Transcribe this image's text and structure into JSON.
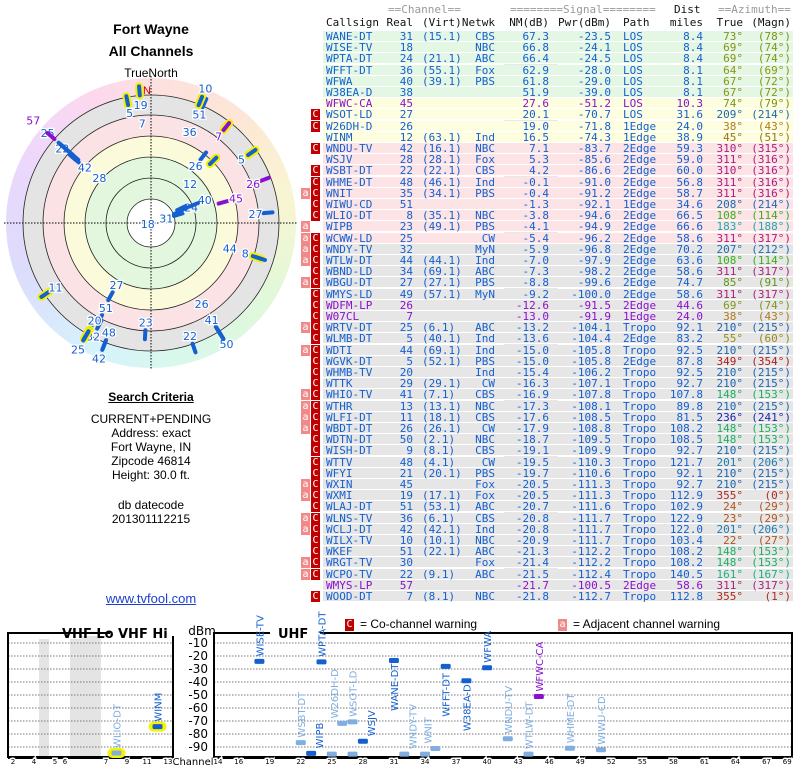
{
  "left": {
    "title1": "Fort Wayne",
    "title2": "All Channels",
    "true_north": "TrueNorth",
    "north": "N",
    "criteria_title": "Search Criteria",
    "criteria": [
      "CURRENT+PENDING",
      "Address: exact",
      "Fort Wayne, IN",
      "Zipcode 46814",
      "Height: 30.0 ft."
    ],
    "datecode_label": "db datecode",
    "datecode": "201301112215",
    "link": "www.tvfool.com"
  },
  "table": {
    "hdr_channel": "==Channel==",
    "hdr_signal": "========Signal========",
    "hdr_dist": "Dist",
    "hdr_azimuth": "==Azimuth==",
    "cols": [
      "Callsign",
      "Real",
      "(Virt)",
      "Netwk",
      "NM(dB)",
      "Pwr(dBm)",
      "Path",
      "miles",
      "True",
      "(Magn)"
    ],
    "rows": [
      [
        "",
        "WANE-DT",
        "31",
        "(15.1)",
        "CBS",
        "67.3",
        "-23.5",
        "LOS",
        "8.4",
        "73°",
        "(78°)",
        "g",
        0
      ],
      [
        "",
        "WISE-TV",
        "18",
        "",
        "NBC",
        "66.8",
        "-24.1",
        "LOS",
        "8.4",
        "69°",
        "(74°)",
        "g",
        0
      ],
      [
        "",
        "WPTA-DT",
        "24",
        "(21.1)",
        "ABC",
        "66.4",
        "-24.5",
        "LOS",
        "8.4",
        "69°",
        "(74°)",
        "g",
        0
      ],
      [
        "",
        "WFFT-DT",
        "36",
        "(55.1)",
        "Fox",
        "62.9",
        "-28.0",
        "LOS",
        "8.1",
        "64°",
        "(69°)",
        "g",
        0
      ],
      [
        "",
        "WFWA",
        "40",
        "(39.1)",
        "PBS",
        "61.8",
        "-29.0",
        "LOS",
        "8.1",
        "67°",
        "(72°)",
        "g",
        0
      ],
      [
        "",
        "W38EA-D",
        "38",
        "",
        "",
        "51.9",
        "-39.0",
        "LOS",
        "8.1",
        "67°",
        "(72°)",
        "g",
        0
      ],
      [
        "",
        "WFWC-CA",
        "45",
        "",
        "",
        "27.6",
        "-51.2",
        "LOS",
        "10.3",
        "74°",
        "(79°)",
        "y",
        1
      ],
      [
        "c",
        "WSOT-LD",
        "27",
        "",
        "",
        "20.1",
        "-70.7",
        "LOS",
        "31.6",
        "209°",
        "(214°)",
        "y",
        0
      ],
      [
        "c",
        "W26DH-D",
        "26",
        "",
        "",
        "19.0",
        "-71.8",
        "1Edge",
        "24.0",
        "38°",
        "(43°)",
        "y",
        0
      ],
      [
        "",
        "WINM",
        "12",
        "(63.1)",
        "Ind",
        "16.5",
        "-74.3",
        "1Edge",
        "38.9",
        "45°",
        "(51°)",
        "y",
        0
      ],
      [
        "c",
        "WNDU-TV",
        "42",
        "(16.1)",
        "NBC",
        "7.1",
        "-83.7",
        "2Edge",
        "59.3",
        "310°",
        "(315°)",
        "p",
        0
      ],
      [
        "",
        "WSJV",
        "28",
        "(28.1)",
        "Fox",
        "5.3",
        "-85.6",
        "2Edge",
        "59.0",
        "311°",
        "(316°)",
        "p",
        0
      ],
      [
        "c",
        "WSBT-DT",
        "22",
        "(22.1)",
        "CBS",
        "4.2",
        "-86.6",
        "2Edge",
        "60.0",
        "310°",
        "(316°)",
        "p",
        0
      ],
      [
        "c",
        "WHME-DT",
        "48",
        "(46.1)",
        "Ind",
        "-0.1",
        "-91.0",
        "2Edge",
        "56.8",
        "311°",
        "(316°)",
        "p",
        0
      ],
      [
        "ac",
        "WNIT",
        "35",
        "(34.1)",
        "PBS",
        "-0.4",
        "-91.2",
        "2Edge",
        "58.7",
        "311°",
        "(316°)",
        "p",
        0
      ],
      [
        "c",
        "WIWU-CD",
        "51",
        "",
        "",
        "-1.3",
        "-92.1",
        "1Edge",
        "34.6",
        "208°",
        "(214°)",
        "p",
        0
      ],
      [
        "c",
        "WLIO-DT",
        "8",
        "(35.1)",
        "NBC",
        "-3.8",
        "-94.6",
        "2Edge",
        "66.5",
        "108°",
        "(114°)",
        "p",
        0
      ],
      [
        "a",
        "WIPB",
        "23",
        "(49.1)",
        "PBS",
        "-4.1",
        "-94.9",
        "2Edge",
        "66.6",
        "183°",
        "(188°)",
        "p",
        0
      ],
      [
        "ac",
        "WCWW-LD",
        "25",
        "",
        "CW",
        "-5.4",
        "-96.2",
        "2Edge",
        "58.6",
        "311°",
        "(317°)",
        "p",
        0
      ],
      [
        "ac",
        "WNDY-TV",
        "32",
        "",
        "MyN",
        "-5.9",
        "-96.8",
        "2Edge",
        "70.2",
        "207°",
        "(212°)",
        "x",
        0
      ],
      [
        "ac",
        "WTLW-DT",
        "44",
        "(44.1)",
        "Ind",
        "-7.0",
        "-97.9",
        "2Edge",
        "63.6",
        "108°",
        "(114°)",
        "x",
        0
      ],
      [
        "c",
        "WBND-LD",
        "34",
        "(69.1)",
        "ABC",
        "-7.3",
        "-98.2",
        "2Edge",
        "58.6",
        "311°",
        "(317°)",
        "x",
        0
      ],
      [
        "ac",
        "WBGU-DT",
        "27",
        "(27.1)",
        "PBS",
        "-8.8",
        "-99.6",
        "2Edge",
        "74.7",
        "85°",
        "(91°)",
        "x",
        0
      ],
      [
        "c",
        "WMYS-LD",
        "49",
        "(57.1)",
        "MyN",
        "-9.2",
        "-100.0",
        "2Edge",
        "58.6",
        "311°",
        "(317°)",
        "x",
        0
      ],
      [
        "c",
        "WDFM-LP",
        "26",
        "",
        "",
        "-12.6",
        "-91.5",
        "2Edge",
        "44.6",
        "69°",
        "(74°)",
        "x",
        1
      ],
      [
        "c",
        "W07CL",
        "7",
        "",
        "",
        "-13.0",
        "-91.9",
        "1Edge",
        "24.0",
        "38°",
        "(43°)",
        "x",
        1
      ],
      [
        "ac",
        "WRTV-DT",
        "25",
        "(6.1)",
        "ABC",
        "-13.2",
        "-104.1",
        "Tropo",
        "92.1",
        "210°",
        "(215°)",
        "x",
        0
      ],
      [
        "c",
        "WLMB-DT",
        "5",
        "(40.1)",
        "Ind",
        "-13.6",
        "-104.4",
        "2Edge",
        "83.2",
        "55°",
        "(60°)",
        "x",
        0
      ],
      [
        "ac",
        "WDTI",
        "44",
        "(69.1)",
        "Ind",
        "-15.0",
        "-105.8",
        "Tropo",
        "92.5",
        "210°",
        "(215°)",
        "x",
        0
      ],
      [
        "c",
        "WGVK-DT",
        "5",
        "(52.1)",
        "PBS",
        "-15.0",
        "-105.8",
        "2Edge",
        "87.8",
        "349°",
        "(354°)",
        "x",
        0
      ],
      [
        "c",
        "WHMB-TV",
        "20",
        "",
        "Ind",
        "-15.4",
        "-106.2",
        "Tropo",
        "92.5",
        "210°",
        "(215°)",
        "x",
        0
      ],
      [
        "c",
        "WTTK",
        "29",
        "(29.1)",
        "CW",
        "-16.3",
        "-107.1",
        "Tropo",
        "92.7",
        "210°",
        "(215°)",
        "x",
        0
      ],
      [
        "ac",
        "WHIO-TV",
        "41",
        "(7.1)",
        "CBS",
        "-16.9",
        "-107.8",
        "Tropo",
        "107.8",
        "148°",
        "(153°)",
        "x",
        0
      ],
      [
        "ac",
        "WTHR",
        "13",
        "(13.1)",
        "NBC",
        "-17.3",
        "-108.1",
        "Tropo",
        "89.8",
        "210°",
        "(215°)",
        "x",
        0
      ],
      [
        "ac",
        "WLFI-DT",
        "11",
        "(18.1)",
        "CBS",
        "-17.6",
        "-108.5",
        "Tropo",
        "81.5",
        "236°",
        "(241°)",
        "x",
        0
      ],
      [
        "ac",
        "WBDT-DT",
        "26",
        "(26.1)",
        "CW",
        "-17.9",
        "-108.8",
        "Tropo",
        "108.2",
        "148°",
        "(153°)",
        "x",
        0
      ],
      [
        "c",
        "WDTN-DT",
        "50",
        "(2.1)",
        "NBC",
        "-18.7",
        "-109.5",
        "Tropo",
        "108.5",
        "148°",
        "(153°)",
        "x",
        0
      ],
      [
        "c",
        "WISH-DT",
        "9",
        "(8.1)",
        "CBS",
        "-19.1",
        "-109.9",
        "Tropo",
        "92.7",
        "210°",
        "(215°)",
        "x",
        0
      ],
      [
        "c",
        "WTTV",
        "48",
        "(4.1)",
        "CW",
        "-19.5",
        "-110.3",
        "Tropo",
        "121.7",
        "201°",
        "(206°)",
        "x",
        0
      ],
      [
        "c",
        "WFYI",
        "21",
        "(20.1)",
        "PBS",
        "-19.7",
        "-110.6",
        "Tropo",
        "92.1",
        "210°",
        "(215°)",
        "x",
        0
      ],
      [
        "ac",
        "WXIN",
        "45",
        "",
        "Fox",
        "-20.5",
        "-111.3",
        "Tropo",
        "92.7",
        "210°",
        "(215°)",
        "x",
        0
      ],
      [
        "ac",
        "WXMI",
        "19",
        "(17.1)",
        "Fox",
        "-20.5",
        "-111.3",
        "Tropo",
        "112.9",
        "355°",
        "(0°)",
        "x",
        0
      ],
      [
        "c",
        "WLAJ-DT",
        "51",
        "(53.1)",
        "ABC",
        "-20.7",
        "-111.6",
        "Tropo",
        "102.9",
        "24°",
        "(29°)",
        "x",
        0
      ],
      [
        "ac",
        "WLNS-TV",
        "36",
        "(6.1)",
        "CBS",
        "-20.8",
        "-111.7",
        "Tropo",
        "122.9",
        "23°",
        "(29°)",
        "x",
        0
      ],
      [
        "ac",
        "WCLJ-DT",
        "42",
        "(42.1)",
        "Ind",
        "-20.8",
        "-111.7",
        "Tropo",
        "122.0",
        "201°",
        "(206°)",
        "x",
        0
      ],
      [
        "c",
        "WILX-TV",
        "10",
        "(10.1)",
        "NBC",
        "-20.9",
        "-111.7",
        "Tropo",
        "103.4",
        "22°",
        "(27°)",
        "x",
        0
      ],
      [
        "c",
        "WKEF",
        "51",
        "(22.1)",
        "ABC",
        "-21.3",
        "-112.2",
        "Tropo",
        "108.2",
        "148°",
        "(153°)",
        "x",
        0
      ],
      [
        "ac",
        "WRGT-TV",
        "30",
        "",
        "Fox",
        "-21.4",
        "-112.2",
        "Tropo",
        "108.2",
        "148°",
        "(153°)",
        "x",
        0
      ],
      [
        "ac",
        "WCPO-TV",
        "22",
        "(9.1)",
        "ABC",
        "-21.5",
        "-112.4",
        "Tropo",
        "140.5",
        "161°",
        "(167°)",
        "x",
        0
      ],
      [
        "",
        "WMYS-LP",
        "57",
        "",
        "",
        "-21.7",
        "-100.5",
        "2Edge",
        "58.6",
        "311°",
        "(317°)",
        "x",
        1
      ],
      [
        "c",
        "WOOD-DT",
        "7",
        "(8.1)",
        "NBC",
        "-21.8",
        "-112.7",
        "Tropo",
        "112.8",
        "355°",
        "(1°)",
        "x",
        0
      ]
    ]
  },
  "legend": {
    "c_mark": "C",
    "c_text": "= Co-channel warning",
    "a_mark": "a",
    "a_text": "= Adjacent channel warning"
  },
  "spectrum": {
    "vhf_lo": "VHF Lo",
    "vhf_hi": "VHF Hi",
    "uhf": "UHF",
    "dbm_label": "dBm",
    "channel_label": "Channel",
    "dbm_ticks": [
      "-10",
      "-20",
      "-30",
      "-40",
      "-50",
      "-60",
      "-70",
      "-80",
      "-90"
    ],
    "vhf_ticks": [
      "2",
      "4",
      "5",
      "6",
      "7",
      "9",
      "11",
      "13"
    ],
    "uhf_ticks": [
      "14",
      "16",
      "19",
      "22",
      "25",
      "28",
      "31",
      "34",
      "37",
      "40",
      "43",
      "46",
      "49",
      "52",
      "55",
      "58",
      "61",
      "64",
      "67",
      "69"
    ]
  },
  "colors": {
    "text": "#1560d0",
    "purple": "#8a10d0",
    "co_channel": "#c00000",
    "adjacent": "#f08a8a",
    "row_g": "#e4f7e4",
    "row_y": "#fdfde0",
    "row_p": "#fbe3e6",
    "row_x": "#e6e6e6"
  }
}
